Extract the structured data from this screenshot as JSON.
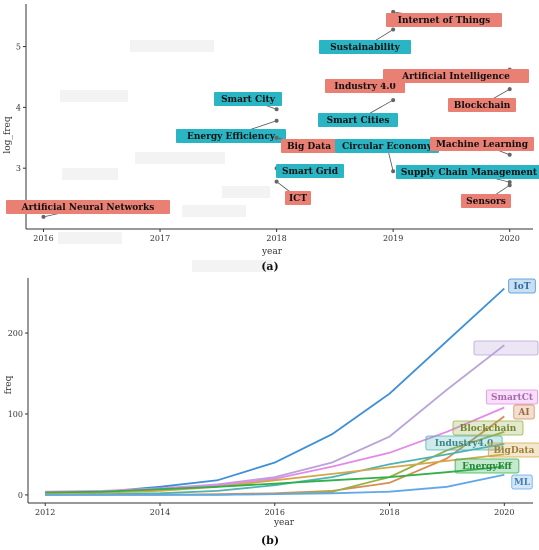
{
  "chart_data": [
    {
      "type": "scatter",
      "panel_label": "(a)",
      "xlabel": "year",
      "ylabel": "log_freq",
      "xlim": [
        2015.85,
        2020.2
      ],
      "ylim": [
        2.0,
        5.7
      ],
      "x_ticks": [
        "2016",
        "2017",
        "2018",
        "2019",
        "2020"
      ],
      "y_ticks": [
        "3",
        "4",
        "5"
      ],
      "colors": {
        "teal": "#29b5c4",
        "salmon": "#ea7f74"
      },
      "points": [
        {
          "label": "Artificial Neural Networks",
          "x": 2016.0,
          "y": 2.2,
          "color": "salmon"
        },
        {
          "label": "Smart City",
          "x": 2018.0,
          "y": 3.97,
          "color": "teal"
        },
        {
          "label": "Energy Efficiency",
          "x": 2018.0,
          "y": 3.78,
          "color": "teal"
        },
        {
          "label": "Big Data",
          "x": 2018.0,
          "y": 3.5,
          "color": "salmon"
        },
        {
          "label": "Smart Grid",
          "x": 2018.0,
          "y": 3.0,
          "color": "teal"
        },
        {
          "label": "ICT",
          "x": 2018.0,
          "y": 2.78,
          "color": "salmon"
        },
        {
          "label": "Internet of Things",
          "x": 2019.0,
          "y": 5.57,
          "color": "salmon"
        },
        {
          "label": "Sustainability",
          "x": 2019.0,
          "y": 5.28,
          "color": "teal"
        },
        {
          "label": "Industry 4.0",
          "x": 2019.0,
          "y": 4.28,
          "color": "salmon"
        },
        {
          "label": "Smart Cities",
          "x": 2019.0,
          "y": 4.12,
          "color": "teal"
        },
        {
          "label": "Circular Economy",
          "x": 2019.0,
          "y": 2.95,
          "color": "teal"
        },
        {
          "label": "Artificial Intelligence",
          "x": 2020.0,
          "y": 4.62,
          "color": "salmon"
        },
        {
          "label": "Blockchain",
          "x": 2020.0,
          "y": 4.3,
          "color": "salmon"
        },
        {
          "label": "Machine Learning",
          "x": 2020.0,
          "y": 3.22,
          "color": "salmon"
        },
        {
          "label": "Supply Chain Management",
          "x": 2020.0,
          "y": 2.77,
          "color": "teal"
        },
        {
          "label": "Sensors",
          "x": 2020.0,
          "y": 2.72,
          "color": "salmon"
        }
      ]
    },
    {
      "type": "line",
      "panel_label": "(b)",
      "xlabel": "year",
      "ylabel": "freq",
      "xlim": [
        2011.7,
        2020.5
      ],
      "ylim": [
        -10,
        268
      ],
      "x_ticks": [
        "2012",
        "2014",
        "2016",
        "2018",
        "2020"
      ],
      "y_ticks": [
        "0",
        "100",
        "200"
      ],
      "x": [
        2012,
        2013,
        2014,
        2015,
        2016,
        2017,
        2018,
        2019,
        2020
      ],
      "series": [
        {
          "name": "IoT",
          "color": "#3d8fd6",
          "values": [
            2,
            4,
            10,
            18,
            40,
            75,
            125,
            190,
            255
          ]
        },
        {
          "name": "",
          "color": "#b9a3d8",
          "values": [
            3,
            4,
            8,
            13,
            22,
            40,
            72,
            130,
            185
          ]
        },
        {
          "name": "SmartCt",
          "color": "#e38ae8",
          "values": [
            4,
            5,
            8,
            12,
            20,
            35,
            52,
            78,
            108
          ]
        },
        {
          "name": "AI",
          "color": "#d58d52",
          "values": [
            0,
            0,
            0,
            1,
            2,
            5,
            15,
            45,
            97
          ]
        },
        {
          "name": "Blockchain",
          "color": "#99b047",
          "values": [
            0,
            0,
            0,
            0,
            1,
            4,
            22,
            55,
            78
          ]
        },
        {
          "name": "Industry4.0",
          "color": "#4eb3b3",
          "values": [
            0,
            1,
            2,
            5,
            12,
            22,
            38,
            50,
            63
          ]
        },
        {
          "name": "BigData",
          "color": "#d3a84a",
          "values": [
            2,
            3,
            5,
            10,
            18,
            26,
            34,
            42,
            50
          ]
        },
        {
          "name": "EnergyEff",
          "color": "#2fb04a",
          "values": [
            3,
            4,
            7,
            10,
            14,
            18,
            22,
            28,
            35
          ]
        },
        {
          "name": "ML",
          "color": "#62a8e8",
          "values": [
            0,
            0,
            0,
            0,
            1,
            2,
            4,
            10,
            25
          ]
        }
      ]
    }
  ]
}
